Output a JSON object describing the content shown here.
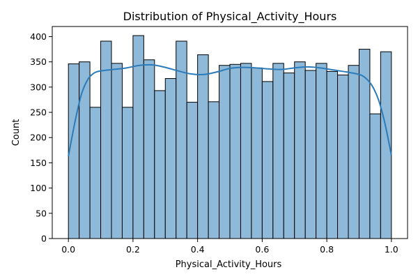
{
  "chart_data": {
    "type": "bar",
    "subtype": "histogram-with-kde",
    "title": "Distribution of Physical_Activity_Hours",
    "xlabel": "Physical_Activity_Hours",
    "ylabel": "Count",
    "xlim": [
      -0.05,
      1.05
    ],
    "ylim": [
      0,
      420
    ],
    "xticks": [
      0.0,
      0.2,
      0.4,
      0.6,
      0.8,
      1.0
    ],
    "xtick_labels": [
      "0.0",
      "0.2",
      "0.4",
      "0.6",
      "0.8",
      "1.0"
    ],
    "yticks": [
      0,
      50,
      100,
      150,
      200,
      250,
      300,
      350,
      400
    ],
    "ytick_labels": [
      "0",
      "50",
      "100",
      "150",
      "200",
      "250",
      "300",
      "350",
      "400"
    ],
    "bin_start": 0.0,
    "bin_end": 1.0,
    "counts": [
      346,
      350,
      260,
      391,
      347,
      260,
      402,
      354,
      293,
      317,
      391,
      270,
      364,
      271,
      343,
      345,
      347,
      338,
      311,
      347,
      328,
      350,
      333,
      347,
      331,
      324,
      343,
      375,
      247,
      370
    ],
    "kde": {
      "x": [
        0.0,
        0.02,
        0.04,
        0.06,
        0.08,
        0.1,
        0.14,
        0.18,
        0.22,
        0.26,
        0.3,
        0.34,
        0.38,
        0.42,
        0.46,
        0.5,
        0.54,
        0.58,
        0.62,
        0.66,
        0.7,
        0.74,
        0.78,
        0.82,
        0.86,
        0.9,
        0.92,
        0.94,
        0.96,
        0.98,
        1.0
      ],
      "y": [
        163,
        230,
        285,
        315,
        328,
        332,
        335,
        338,
        343,
        344,
        339,
        332,
        326,
        325,
        330,
        337,
        339,
        338,
        336,
        335,
        338,
        340,
        338,
        334,
        330,
        325,
        318,
        303,
        275,
        228,
        165
      ]
    },
    "grid": false,
    "legend": "none",
    "colors": {
      "bar_fill": "#8fb9d9",
      "bar_edge": "#000000",
      "kde_line": "#2b7bb9"
    }
  }
}
